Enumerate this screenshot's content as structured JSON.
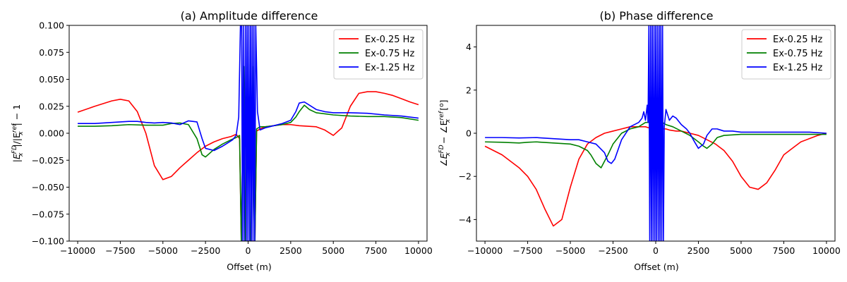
{
  "chart_data": [
    {
      "type": "line",
      "title": "(a) Amplitude difference",
      "xlabel": "Offset (m)",
      "ylabel_parts": {
        "a": "|E",
        "b": "FD",
        "c": "x",
        "d": "|/|E",
        "e": "ref",
        "f": "x",
        "g": "| − 1"
      },
      "xlim": [
        -10500,
        10500
      ],
      "ylim": [
        -0.1,
        0.1
      ],
      "xticks": [
        -10000,
        -7500,
        -5000,
        -2500,
        0,
        2500,
        5000,
        7500,
        10000
      ],
      "xtick_labels": [
        "−10000",
        "−7500",
        "−5000",
        "−2500",
        "0",
        "2500",
        "5000",
        "7500",
        "10000"
      ],
      "yticks": [
        -0.1,
        -0.075,
        -0.05,
        -0.025,
        0.0,
        0.025,
        0.05,
        0.075,
        0.1
      ],
      "ytick_labels": [
        "−0.100",
        "−0.075",
        "−0.050",
        "−0.025",
        "0.000",
        "0.025",
        "0.050",
        "0.075",
        "0.100"
      ],
      "legend_position": "top-right",
      "series": [
        {
          "name": "Ex-0.25 Hz",
          "color": "#ff0000",
          "x": [
            -10000,
            -9000,
            -8000,
            -7500,
            -7000,
            -6500,
            -6000,
            -5500,
            -5000,
            -4500,
            -4000,
            -3500,
            -3000,
            -2500,
            -2000,
            -1500,
            -1000,
            -700,
            -500,
            -400,
            400,
            500,
            700,
            1000,
            1500,
            2000,
            2500,
            3000,
            3500,
            4000,
            4500,
            5000,
            5500,
            6000,
            6500,
            7000,
            7500,
            8000,
            8500,
            9000,
            9500,
            10000
          ],
          "y": [
            0.0195,
            0.025,
            0.03,
            0.0315,
            0.03,
            0.02,
            0.0,
            -0.03,
            -0.043,
            -0.04,
            -0.032,
            -0.025,
            -0.018,
            -0.012,
            -0.008,
            -0.005,
            -0.003,
            -0.001,
            -0.005,
            -0.1,
            -0.1,
            0.002,
            0.004,
            0.006,
            0.007,
            0.008,
            0.008,
            0.007,
            0.0065,
            0.006,
            0.003,
            -0.002,
            0.005,
            0.025,
            0.037,
            0.0385,
            0.0385,
            0.037,
            0.035,
            0.032,
            0.029,
            0.0265
          ]
        },
        {
          "name": "Ex-0.75 Hz",
          "color": "#008000",
          "x": [
            -10000,
            -9000,
            -8000,
            -7000,
            -6000,
            -5000,
            -4500,
            -4000,
            -3500,
            -3000,
            -2700,
            -2500,
            -2000,
            -1500,
            -1000,
            -700,
            -500,
            -400,
            -250,
            -150,
            150,
            250,
            400,
            500,
            700,
            1000,
            1500,
            2000,
            2500,
            2800,
            3000,
            3300,
            3600,
            4000,
            4500,
            5000,
            6000,
            7000,
            8000,
            9000,
            10000
          ],
          "y": [
            0.0065,
            0.0065,
            0.007,
            0.008,
            0.0075,
            0.0075,
            0.009,
            0.0095,
            0.008,
            -0.005,
            -0.02,
            -0.022,
            -0.015,
            -0.01,
            -0.006,
            -0.004,
            -0.002,
            -0.1,
            0.062,
            -0.1,
            -0.1,
            0.062,
            -0.1,
            0.004,
            0.006,
            0.006,
            0.007,
            0.008,
            0.01,
            0.015,
            0.02,
            0.026,
            0.022,
            0.019,
            0.018,
            0.017,
            0.016,
            0.0155,
            0.0155,
            0.0145,
            0.012
          ]
        },
        {
          "name": "Ex-1.25 Hz",
          "color": "#0000ff",
          "x": [
            -10000,
            -9000,
            -8000,
            -7000,
            -6500,
            -6000,
            -5500,
            -5000,
            -4500,
            -4000,
            -3500,
            -3000,
            -2700,
            -2500,
            -2000,
            -1500,
            -1200,
            -900,
            -700,
            -550,
            -450,
            -380,
            -330,
            -280,
            -230,
            -160,
            -110,
            -60,
            -10,
            40,
            90,
            140,
            190,
            240,
            290,
            340,
            390,
            450,
            550,
            700,
            1000,
            1500,
            2000,
            2500,
            2800,
            3000,
            3300,
            3600,
            4000,
            4500,
            5000,
            6000,
            7000,
            8000,
            9000,
            10000
          ],
          "y": [
            0.009,
            0.009,
            0.01,
            0.011,
            0.011,
            0.01,
            0.0095,
            0.01,
            0.0095,
            0.008,
            0.0115,
            0.0105,
            -0.005,
            -0.014,
            -0.016,
            -0.012,
            -0.009,
            -0.006,
            -0.002,
            0.015,
            0.1,
            0.1,
            -0.1,
            0.1,
            -0.1,
            0.1,
            -0.1,
            0.1,
            -0.1,
            0.1,
            -0.1,
            0.1,
            -0.1,
            0.1,
            -0.1,
            0.1,
            -0.1,
            0.1,
            0.02,
            0.003,
            0.005,
            0.007,
            0.009,
            0.012,
            0.02,
            0.028,
            0.029,
            0.026,
            0.022,
            0.02,
            0.019,
            0.019,
            0.0185,
            0.017,
            0.016,
            0.014
          ]
        }
      ]
    },
    {
      "type": "line",
      "title": "(b) Phase difference",
      "xlabel": "Offset (m)",
      "ylabel_parts": {
        "a": "∠E",
        "b": "FD",
        "c": "x",
        "d": " − ∠E",
        "e": "ref",
        "f": "x",
        "g": " [",
        "h": "o",
        "i": "]"
      },
      "xlim": [
        -10500,
        10500
      ],
      "ylim": [
        -5,
        5
      ],
      "xticks": [
        -10000,
        -7500,
        -5000,
        -2500,
        0,
        2500,
        5000,
        7500,
        10000
      ],
      "xtick_labels": [
        "−10000",
        "−7500",
        "−5000",
        "−2500",
        "0",
        "2500",
        "5000",
        "7500",
        "10000"
      ],
      "yticks": [
        -4,
        -2,
        0,
        2,
        4
      ],
      "ytick_labels": [
        "−4",
        "−2",
        "0",
        "2",
        "4"
      ],
      "legend_position": "top-right",
      "series": [
        {
          "name": "Ex-0.25 Hz",
          "color": "#ff0000",
          "x": [
            -10000,
            -9000,
            -8000,
            -7500,
            -7000,
            -6500,
            -6000,
            -5500,
            -5000,
            -4500,
            -4000,
            -3500,
            -3000,
            -2500,
            -2000,
            -1500,
            -1000,
            -600,
            -400,
            400,
            600,
            800,
            1200,
            1500,
            2000,
            2500,
            3000,
            3500,
            4000,
            4500,
            5000,
            5500,
            6000,
            6500,
            7000,
            7500,
            8000,
            8500,
            9000,
            9500,
            10000
          ],
          "y": [
            -0.6,
            -1.0,
            -1.6,
            -2.0,
            -2.6,
            -3.5,
            -4.3,
            -4.0,
            -2.5,
            -1.2,
            -0.5,
            -0.2,
            0.0,
            0.1,
            0.2,
            0.3,
            0.3,
            0.3,
            0.25,
            0.2,
            0.2,
            0.15,
            0.1,
            0.1,
            0.0,
            -0.1,
            -0.3,
            -0.5,
            -0.8,
            -1.3,
            -2.0,
            -2.5,
            -2.6,
            -2.3,
            -1.7,
            -1.0,
            -0.7,
            -0.4,
            -0.25,
            -0.1,
            0.0
          ]
        },
        {
          "name": "Ex-0.75 Hz",
          "color": "#008000",
          "x": [
            -10000,
            -9000,
            -8000,
            -7500,
            -7000,
            -6000,
            -5000,
            -4500,
            -4000,
            -3800,
            -3500,
            -3200,
            -3000,
            -2800,
            -2500,
            -2000,
            -1500,
            -1000,
            -600,
            -400,
            400,
            600,
            1000,
            1500,
            2000,
            2500,
            2800,
            3000,
            3300,
            3600,
            4000,
            5000,
            6000,
            7000,
            8000,
            9000,
            10000
          ],
          "y": [
            -0.4,
            -0.42,
            -0.45,
            -0.42,
            -0.4,
            -0.45,
            -0.5,
            -0.6,
            -0.8,
            -1.0,
            -1.4,
            -1.6,
            -1.3,
            -1.0,
            -0.5,
            0.0,
            0.2,
            0.3,
            0.5,
            0.5,
            0.5,
            0.4,
            0.3,
            0.1,
            -0.1,
            -0.4,
            -0.6,
            -0.7,
            -0.5,
            -0.2,
            -0.1,
            -0.05,
            -0.05,
            -0.05,
            -0.05,
            -0.05,
            -0.05
          ]
        },
        {
          "name": "Ex-1.25 Hz",
          "color": "#0000ff",
          "x": [
            -10000,
            -9000,
            -8000,
            -7000,
            -6000,
            -5000,
            -4500,
            -4000,
            -3500,
            -3000,
            -2800,
            -2600,
            -2400,
            -2000,
            -1500,
            -1000,
            -800,
            -700,
            -600,
            -500,
            -450,
            -400,
            -350,
            -300,
            -250,
            -200,
            -150,
            -100,
            -50,
            0,
            50,
            100,
            150,
            200,
            250,
            300,
            350,
            400,
            450,
            500,
            600,
            800,
            1000,
            1200,
            1500,
            1800,
            2000,
            2200,
            2500,
            2800,
            3000,
            3300,
            3600,
            4000,
            4500,
            5000,
            6000,
            7000,
            8000,
            9000,
            10000
          ],
          "y": [
            -0.2,
            -0.2,
            -0.22,
            -0.2,
            -0.25,
            -0.3,
            -0.3,
            -0.4,
            -0.5,
            -0.9,
            -1.3,
            -1.4,
            -1.2,
            -0.3,
            0.3,
            0.5,
            0.7,
            1.0,
            0.6,
            1.3,
            0.5,
            5,
            -5,
            5,
            -5,
            5,
            -5,
            5,
            -5,
            5,
            -5,
            5,
            -5,
            5,
            -5,
            5,
            -5,
            5,
            -5,
            0.3,
            1.1,
            0.6,
            0.8,
            0.7,
            0.4,
            0.2,
            0.0,
            -0.3,
            -0.7,
            -0.5,
            -0.1,
            0.2,
            0.2,
            0.1,
            0.1,
            0.05,
            0.05,
            0.05,
            0.05,
            0.05,
            0.0
          ]
        }
      ]
    }
  ]
}
